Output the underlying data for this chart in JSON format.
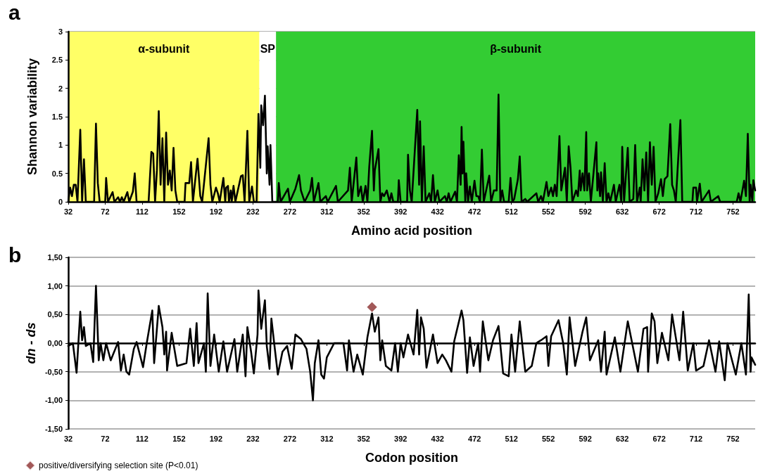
{
  "chart_data": [
    {
      "type": "line",
      "xlabel": "Amino acid position",
      "ylabel": "Shannon variability",
      "annotations": [
        "a"
      ],
      "xlim": [
        32,
        776
      ],
      "xticks": [
        32,
        72,
        112,
        152,
        192,
        232,
        272,
        312,
        352,
        392,
        432,
        472,
        512,
        552,
        592,
        632,
        672,
        712,
        752
      ],
      "ylim": [
        0,
        3
      ],
      "yticks": [
        0,
        0.5,
        1,
        1.5,
        2,
        2.5,
        3
      ],
      "grid": "y",
      "marker": "none",
      "line_style": "solid",
      "bands": [
        {
          "axis": "x",
          "from": 32,
          "to": 239,
          "label": "α-subunit",
          "color": "#ffff66"
        },
        {
          "axis": "x",
          "from": 239,
          "to": 257,
          "label": "SP",
          "color": "#ffffff"
        },
        {
          "axis": "x",
          "from": 257,
          "to": 776,
          "label": "β-subunit",
          "color": "#33cc33"
        }
      ],
      "series": [
        {
          "color": "#000000",
          "x": [
            32,
            34,
            36,
            38,
            40,
            42,
            45,
            47,
            49,
            51,
            60,
            62,
            64,
            66,
            72,
            73,
            75,
            80,
            82,
            86,
            88,
            90,
            92,
            96,
            98,
            102,
            104,
            106,
            119,
            122,
            124,
            126,
            128,
            130,
            132,
            134,
            136,
            138,
            140,
            142,
            144,
            146,
            148,
            150,
            158,
            159,
            163,
            165,
            167,
            172,
            175,
            177,
            184,
            186,
            188,
            192,
            194,
            196,
            200,
            202,
            203,
            205,
            206,
            208,
            209,
            211,
            213,
            219,
            221,
            223,
            226,
            228,
            231,
            233,
            236,
            238,
            240,
            241,
            243,
            245,
            247,
            248,
            250,
            251,
            253,
            259,
            260,
            262,
            270,
            272,
            278,
            282,
            284,
            286,
            288,
            294,
            296,
            298,
            303,
            305,
            311,
            313,
            322,
            324,
            335,
            337,
            339,
            344,
            346,
            349,
            351,
            354,
            356,
            358,
            361,
            363,
            364,
            368,
            370,
            372,
            374,
            377,
            380,
            382,
            384,
            389,
            390,
            392,
            399,
            400,
            402,
            404,
            410,
            412,
            413,
            415,
            417,
            419,
            423,
            425,
            427,
            429,
            432,
            434,
            440,
            442,
            444,
            446,
            451,
            453,
            455,
            457,
            458,
            459,
            460,
            462,
            463,
            465,
            467,
            469,
            472,
            474,
            476,
            478,
            480,
            482,
            488,
            490,
            493,
            496,
            498,
            500,
            502,
            504,
            509,
            511,
            513,
            515,
            519,
            521,
            523,
            527,
            529,
            539,
            541,
            544,
            546,
            550,
            552,
            555,
            557,
            559,
            561,
            564,
            566,
            570,
            572,
            574,
            576,
            578,
            582,
            584,
            586,
            587,
            589,
            591,
            593,
            594,
            596,
            598,
            604,
            605,
            606,
            608,
            609,
            611,
            613,
            615,
            617,
            619,
            623,
            625,
            629,
            631,
            632,
            634,
            638,
            640,
            644,
            646,
            648,
            651,
            652,
            654,
            656,
            658,
            660,
            662,
            664,
            666,
            668,
            671,
            674,
            676,
            678,
            681,
            684,
            686,
            688,
            690,
            695,
            697,
            708,
            709,
            712,
            713,
            716,
            718,
            726,
            728,
            736,
            738,
            756,
            758,
            760,
            764,
            766,
            768,
            770,
            771,
            773,
            774,
            776
          ],
          "values": [
            0,
            0.25,
            0.1,
            0.3,
            0.3,
            0,
            1.27,
            0,
            0.75,
            0,
            0,
            1.38,
            0.33,
            0,
            0,
            0.42,
            0,
            0.17,
            0,
            0.08,
            0,
            0.08,
            0,
            0.17,
            0,
            0.18,
            0.5,
            0,
            0,
            0.88,
            0.85,
            0,
            0.55,
            1.6,
            0.3,
            1.12,
            0,
            1.22,
            0.3,
            0.55,
            0.2,
            0.95,
            0.2,
            0,
            0,
            0.33,
            0.33,
            0.7,
            0,
            0.76,
            0.1,
            0,
            1.12,
            0.3,
            0,
            0.25,
            0.15,
            0,
            0.42,
            0,
            0.25,
            0.28,
            0,
            0.2,
            0,
            0.28,
            0,
            0.45,
            0.47,
            0,
            1.25,
            0,
            0.27,
            0,
            0,
            1.55,
            0.6,
            1.7,
            1.35,
            1.87,
            0.5,
            0.98,
            0.3,
            1.0,
            0,
            0,
            0.33,
            0,
            0.23,
            0,
            0.23,
            0.47,
            0.2,
            0.1,
            0,
            0.2,
            0.42,
            0,
            0.33,
            0,
            0.1,
            0,
            0.28,
            0,
            0.2,
            0.6,
            0,
            0.78,
            0.1,
            0.27,
            0,
            0.28,
            0,
            0.62,
            1.25,
            0.2,
            0.55,
            0.93,
            0,
            0.15,
            0.1,
            0.2,
            0,
            0.15,
            0,
            0,
            0.38,
            0,
            0,
            0.83,
            0.2,
            0,
            1.62,
            0.3,
            1.42,
            0,
            0.98,
            0,
            0.15,
            0,
            0.47,
            0,
            0.2,
            0,
            0.1,
            0,
            0.15,
            0,
            0.18,
            0,
            0.82,
            0.3,
            1.32,
            0.5,
            1.06,
            0,
            0.5,
            0,
            0.27,
            0,
            0.37,
            0.1,
            0.1,
            0,
            0.92,
            0,
            0.46,
            0,
            0.2,
            0.2,
            1.89,
            0,
            0.2,
            0,
            0,
            0.42,
            0,
            0.05,
            0.4,
            0.8,
            0,
            0.05,
            0,
            0.15,
            0,
            0.1,
            0,
            0.35,
            0.1,
            0.25,
            0.1,
            0.3,
            0.1,
            1.16,
            0.2,
            0.6,
            0,
            0.98,
            0.6,
            0,
            0.2,
            0.1,
            0.55,
            0.2,
            0.5,
            0.2,
            1.23,
            0.2,
            0.5,
            0,
            1.05,
            0.2,
            0.5,
            0.1,
            0.52,
            0,
            0.68,
            0,
            0.15,
            0,
            0.3,
            0,
            0.3,
            0,
            0.97,
            0,
            0.95,
            0,
            0.05,
            1.0,
            0,
            0.25,
            0,
            0.75,
            0.2,
            0.87,
            0,
            1.05,
            0.3,
            0.97,
            0,
            0.15,
            0.4,
            0.1,
            0.4,
            0.45,
            1.37,
            0.3,
            0.2,
            0,
            1.44,
            0,
            0,
            0.25,
            0.25,
            0,
            0.32,
            0,
            0.2,
            0,
            0.1,
            0,
            0,
            0.15,
            0,
            0.37,
            0.1,
            1.2,
            0,
            0.3,
            0,
            0.38,
            0.2
          ]
        }
      ]
    },
    {
      "type": "line",
      "xlabel": "Codon position",
      "ylabel": "dn - ds",
      "annotations": [
        "b"
      ],
      "xlim": [
        32,
        776
      ],
      "xticks": [
        32,
        72,
        112,
        152,
        192,
        232,
        272,
        312,
        352,
        392,
        432,
        472,
        512,
        552,
        592,
        632,
        672,
        712,
        752
      ],
      "ylim": [
        -1.5,
        1.5
      ],
      "yticks": [
        {
          "value": -1.5,
          "label": "-1,50"
        },
        {
          "value": -1,
          "label": "-1,00"
        },
        {
          "value": -0.5,
          "label": "-0,50"
        },
        {
          "value": 0,
          "label": "0,00"
        },
        {
          "value": 0.5,
          "label": "0,50"
        },
        {
          "value": 1,
          "label": "1,00"
        },
        {
          "value": 1.5,
          "label": "1,50"
        }
      ],
      "grid": "y",
      "marker": "none",
      "line_style": "solid",
      "legend": "bottom left",
      "series": [
        {
          "color": "#000000",
          "x": [
            32,
            37,
            41,
            45,
            47,
            49,
            51,
            56,
            59,
            62,
            65,
            67,
            70,
            73,
            78,
            86,
            89,
            92,
            95,
            98,
            103,
            106,
            113,
            117,
            123,
            125,
            130,
            134,
            136,
            138,
            139,
            144,
            150,
            160,
            164,
            168,
            171,
            173,
            179,
            181,
            183,
            186,
            190,
            195,
            200,
            204,
            212,
            215,
            221,
            224,
            226,
            230,
            233,
            237,
            238,
            241,
            245,
            247,
            250,
            252,
            255,
            259,
            264,
            269,
            274,
            278,
            284,
            290,
            294,
            297,
            299,
            303,
            306,
            309,
            312,
            320,
            330,
            334,
            336,
            341,
            345,
            351,
            356,
            361,
            364,
            368,
            370,
            372,
            376,
            382,
            386,
            389,
            392,
            395,
            400,
            406,
            410,
            412,
            414,
            417,
            420,
            427,
            432,
            437,
            441,
            447,
            450,
            458,
            460,
            464,
            467,
            471,
            476,
            478,
            481,
            487,
            492,
            498,
            503,
            509,
            512,
            516,
            521,
            527,
            534,
            539,
            544,
            550,
            552,
            555,
            563,
            568,
            572,
            575,
            581,
            589,
            593,
            597,
            606,
            609,
            613,
            615,
            624,
            630,
            638,
            649,
            655,
            659,
            660,
            664,
            667,
            670,
            675,
            682,
            686,
            690,
            694,
            698,
            703,
            709,
            712,
            720,
            726,
            733,
            737,
            743,
            746,
            755,
            761,
            766,
            769,
            771,
            772,
            776
          ],
          "values": [
            -0.05,
            0,
            -0.52,
            0.55,
            0.05,
            0.28,
            -0.05,
            0,
            -0.33,
            1.0,
            -0.3,
            0,
            -0.3,
            0,
            -0.3,
            0.02,
            -0.48,
            -0.2,
            -0.5,
            -0.55,
            -0.1,
            0.02,
            -0.42,
            0,
            0.57,
            -0.35,
            0.65,
            0.28,
            -0.2,
            0.2,
            -0.48,
            0.18,
            -0.4,
            -0.35,
            0.25,
            -0.4,
            0.35,
            -0.35,
            0,
            -0.5,
            0.87,
            -0.4,
            0.15,
            -0.5,
            0.03,
            -0.5,
            0.07,
            -0.5,
            0.15,
            -0.58,
            0.28,
            -0.15,
            -0.53,
            0.15,
            0.92,
            0.25,
            0.75,
            -0.05,
            -0.45,
            0.43,
            0,
            -0.55,
            -0.15,
            -0.05,
            -0.45,
            0.15,
            0.07,
            -0.1,
            -0.5,
            -1.0,
            -0.35,
            0.05,
            -0.55,
            -0.62,
            -0.25,
            0,
            0,
            -0.48,
            0.05,
            -0.5,
            -0.2,
            -0.55,
            0.1,
            0.52,
            0.2,
            0.45,
            -0.3,
            0.05,
            -0.4,
            -0.48,
            0,
            -0.5,
            0,
            -0.25,
            0.15,
            -0.2,
            0.58,
            -0.2,
            0.45,
            0.25,
            -0.43,
            0.15,
            -0.35,
            -0.2,
            -0.3,
            -0.5,
            0.03,
            0.57,
            0.4,
            -0.52,
            0.1,
            -0.4,
            0,
            -0.5,
            0.38,
            -0.3,
            0.05,
            0.3,
            -0.53,
            -0.58,
            0.15,
            -0.5,
            0.38,
            -0.5,
            -0.4,
            0,
            0.05,
            0.12,
            -0.4,
            0.12,
            0.4,
            0,
            -0.55,
            0.45,
            -0.4,
            0.2,
            0.45,
            -0.3,
            0.05,
            -0.5,
            0.2,
            -0.55,
            0.1,
            -0.5,
            0.38,
            -0.5,
            0.25,
            0.28,
            -0.5,
            0.52,
            0.38,
            -0.35,
            0.18,
            -0.3,
            0.5,
            0.1,
            -0.3,
            0.55,
            -0.48,
            0,
            -0.48,
            -0.4,
            0.05,
            -0.5,
            0.03,
            -0.65,
            0,
            -0.55,
            0,
            -0.55,
            0.85,
            -0.5,
            -0.25,
            -0.38
          ]
        },
        {
          "type": "scatter",
          "name": "positive/diversifying selection site (P<0.01)",
          "color": "#8b2e2e",
          "marker": "diamond",
          "x": [
            361
          ],
          "values": [
            0.63
          ]
        }
      ]
    }
  ]
}
